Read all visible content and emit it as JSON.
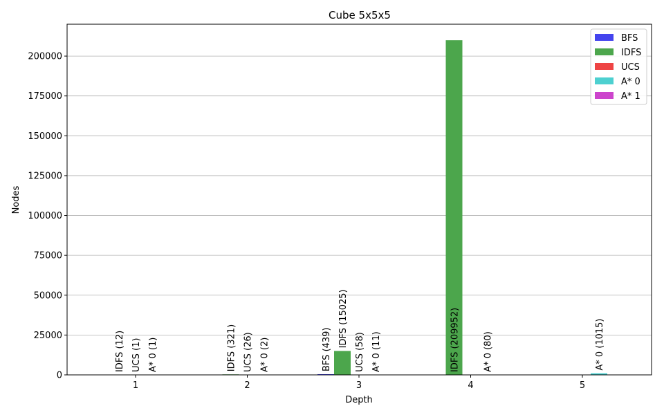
{
  "chart_data": {
    "type": "bar",
    "title": "Cube 5x5x5",
    "xlabel": "Depth",
    "ylabel": "Nodes",
    "categories": [
      "1",
      "2",
      "3",
      "4",
      "5"
    ],
    "ylim": [
      0,
      220000
    ],
    "yticks": [
      0,
      25000,
      50000,
      75000,
      100000,
      125000,
      150000,
      175000,
      200000
    ],
    "ytick_labels": [
      "0",
      "25000",
      "50000",
      "75000",
      "100000",
      "125000",
      "150000",
      "175000",
      "200000"
    ],
    "grid": "y",
    "legend_position": "top-right",
    "series": [
      {
        "name": "BFS",
        "color": "#4444ee",
        "values": [
          null,
          null,
          439,
          null,
          null
        ],
        "labels": [
          "",
          "",
          "BFS (439)",
          "",
          ""
        ]
      },
      {
        "name": "IDFS",
        "color": "#4ca64c",
        "values": [
          12,
          321,
          15025,
          209952,
          null
        ],
        "labels": [
          "IDFS (12)",
          "IDFS (321)",
          "IDFS (15025)",
          "IDFS (209952)",
          ""
        ]
      },
      {
        "name": "UCS",
        "color": "#ee4444",
        "values": [
          1,
          26,
          58,
          null,
          null
        ],
        "labels": [
          "UCS (1)",
          "UCS (26)",
          "UCS (58)",
          "",
          ""
        ]
      },
      {
        "name": "A* 0",
        "color": "#4dd0d0",
        "values": [
          1,
          2,
          11,
          80,
          1015
        ],
        "labels": [
          "A* 0 (1)",
          "A* 0 (2)",
          "A* 0 (11)",
          "A* 0 (80)",
          "A* 0 (1015)"
        ]
      },
      {
        "name": "A* 1",
        "color": "#cc44cc",
        "values": [
          null,
          null,
          null,
          null,
          null
        ],
        "labels": [
          "",
          "",
          "",
          "",
          ""
        ]
      }
    ]
  }
}
